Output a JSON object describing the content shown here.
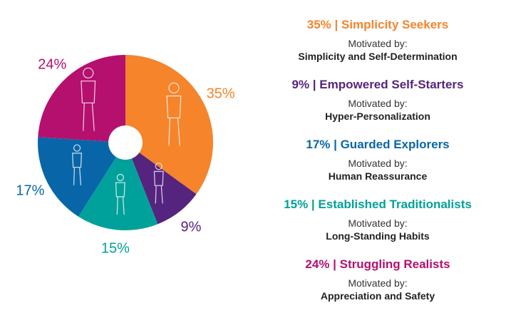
{
  "chart_data": {
    "type": "pie",
    "donut": true,
    "start": "top",
    "direction": "clockwise",
    "slices": [
      {
        "value": 35,
        "label": "35%",
        "color": "#F5842B",
        "name": "Simplicity Seekers",
        "heading": "35% | Simplicity Seekers",
        "motivated_label": "Motivated by:",
        "motivation": "Simplicity and Self-Determination",
        "icon": "walking-woman-sketch"
      },
      {
        "value": 9,
        "label": "9%",
        "color": "#55247E",
        "name": "Empowered Self-Starters",
        "heading": "9% | Empowered Self-Starters",
        "motivated_label": "Motivated by:",
        "motivation": "Hyper-Personalization",
        "icon": "standing-person-sketch"
      },
      {
        "value": 15,
        "label": "15%",
        "color": "#00A19A",
        "name": "Established Traditionalists",
        "heading": "15% | Established Traditionalists",
        "motivated_label": "Motivated by:",
        "motivation": "Long-Standing Habits",
        "icon": "two-people-sketch"
      },
      {
        "value": 17,
        "label": "17%",
        "color": "#0866A8",
        "name": "Guarded Explorers",
        "heading": "17% | Guarded Explorers",
        "motivated_label": "Motivated by:",
        "motivation": "Human Reassurance",
        "icon": "adult-and-child-sketch"
      },
      {
        "value": 24,
        "label": "24%",
        "color": "#B5106E",
        "name": "Struggling Realists",
        "heading": "24% | Struggling Realists",
        "motivated_label": "Motivated by:",
        "motivation": "Appreciation and Safety",
        "icon": "walking-man-sketch"
      }
    ],
    "legend_order": [
      0,
      1,
      3,
      2,
      4
    ],
    "legend_placement": "right"
  }
}
